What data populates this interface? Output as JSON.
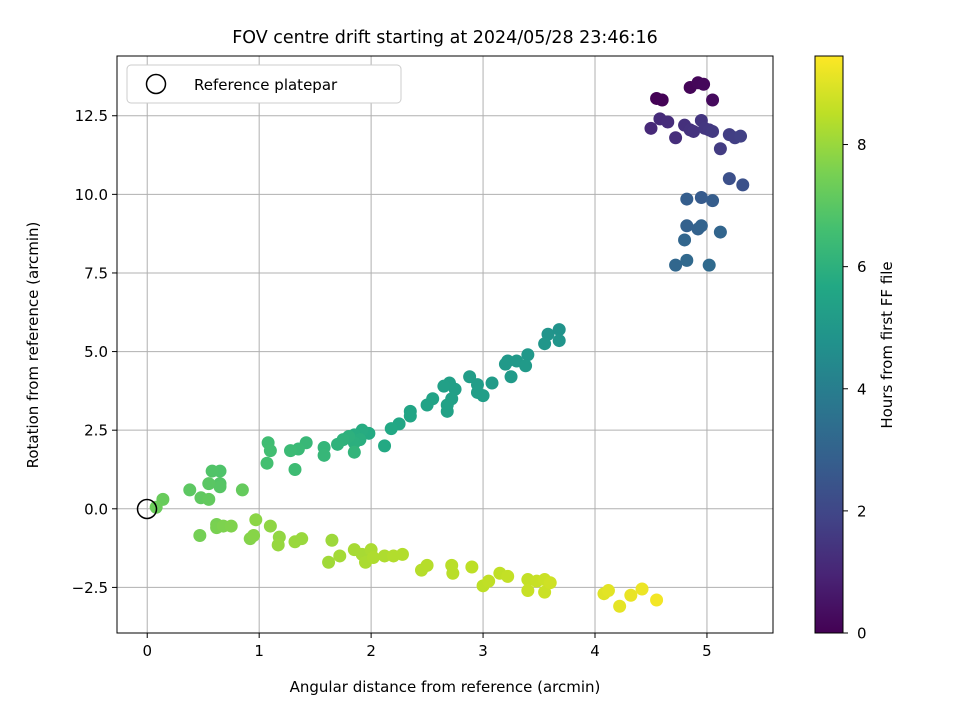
{
  "chart_data": {
    "type": "scatter",
    "title": "FOV centre drift starting at 2024/05/28 23:46:16",
    "xlabel": "Angular distance from reference (arcmin)",
    "ylabel": "Rotation from reference (arcmin)",
    "xlim": [
      -0.27,
      5.59
    ],
    "ylim": [
      -3.95,
      14.4
    ],
    "x_ticks": [
      0,
      1,
      2,
      3,
      4,
      5
    ],
    "y_ticks": [
      -2.5,
      0.0,
      2.5,
      5.0,
      7.5,
      10.0,
      12.5
    ],
    "x_tick_labels": [
      "0",
      "1",
      "2",
      "3",
      "4",
      "5"
    ],
    "y_tick_labels": [
      "−2.5",
      "0.0",
      "2.5",
      "5.0",
      "7.5",
      "10.0",
      "12.5"
    ],
    "grid": true,
    "legend": {
      "placement": "top-left",
      "entries": [
        "Reference platepar"
      ]
    },
    "reference_point": {
      "x": 0,
      "y": 0
    },
    "colorbar": {
      "label": "Hours from first FF file",
      "range": [
        0,
        9.45
      ],
      "ticks": [
        0,
        2,
        4,
        6,
        8
      ],
      "tick_labels": [
        "0",
        "2",
        "4",
        "6",
        "8"
      ],
      "colormap": "viridis"
    },
    "points": [
      {
        "x": 4.55,
        "y": 13.05,
        "h": 0.02
      },
      {
        "x": 4.6,
        "y": 13.0,
        "h": 0.05
      },
      {
        "x": 4.85,
        "y": 13.4,
        "h": 0.1
      },
      {
        "x": 4.92,
        "y": 13.55,
        "h": 0.15
      },
      {
        "x": 4.97,
        "y": 13.5,
        "h": 0.2
      },
      {
        "x": 5.05,
        "y": 13.0,
        "h": 0.25
      },
      {
        "x": 4.5,
        "y": 12.1,
        "h": 1.1
      },
      {
        "x": 4.58,
        "y": 12.4,
        "h": 1.15
      },
      {
        "x": 4.65,
        "y": 12.3,
        "h": 1.2
      },
      {
        "x": 4.72,
        "y": 11.8,
        "h": 1.25
      },
      {
        "x": 4.8,
        "y": 12.2,
        "h": 1.3
      },
      {
        "x": 4.85,
        "y": 12.05,
        "h": 1.35
      },
      {
        "x": 4.88,
        "y": 12.0,
        "h": 1.4
      },
      {
        "x": 4.95,
        "y": 12.35,
        "h": 1.45
      },
      {
        "x": 4.98,
        "y": 12.1,
        "h": 1.5
      },
      {
        "x": 5.02,
        "y": 12.05,
        "h": 1.55
      },
      {
        "x": 5.05,
        "y": 12.0,
        "h": 1.6
      },
      {
        "x": 5.12,
        "y": 11.45,
        "h": 1.65
      },
      {
        "x": 5.2,
        "y": 11.9,
        "h": 1.7
      },
      {
        "x": 5.25,
        "y": 11.8,
        "h": 1.75
      },
      {
        "x": 5.3,
        "y": 11.85,
        "h": 1.8
      },
      {
        "x": 5.2,
        "y": 10.5,
        "h": 2.3
      },
      {
        "x": 5.32,
        "y": 10.3,
        "h": 2.35
      },
      {
        "x": 4.95,
        "y": 9.9,
        "h": 2.7
      },
      {
        "x": 5.05,
        "y": 9.8,
        "h": 2.75
      },
      {
        "x": 4.82,
        "y": 9.85,
        "h": 2.8
      },
      {
        "x": 4.82,
        "y": 9.0,
        "h": 2.9
      },
      {
        "x": 4.92,
        "y": 8.9,
        "h": 2.95
      },
      {
        "x": 4.95,
        "y": 9.0,
        "h": 3.0
      },
      {
        "x": 5.12,
        "y": 8.8,
        "h": 3.05
      },
      {
        "x": 4.8,
        "y": 8.55,
        "h": 3.1
      },
      {
        "x": 4.72,
        "y": 7.75,
        "h": 3.15
      },
      {
        "x": 4.82,
        "y": 7.9,
        "h": 3.2
      },
      {
        "x": 5.02,
        "y": 7.75,
        "h": 3.25
      },
      {
        "x": 3.68,
        "y": 5.7,
        "h": 4.8
      },
      {
        "x": 3.58,
        "y": 5.55,
        "h": 4.85
      },
      {
        "x": 3.68,
        "y": 5.35,
        "h": 4.9
      },
      {
        "x": 3.55,
        "y": 5.25,
        "h": 4.95
      },
      {
        "x": 3.4,
        "y": 4.9,
        "h": 5.0
      },
      {
        "x": 3.22,
        "y": 4.7,
        "h": 5.0
      },
      {
        "x": 3.2,
        "y": 4.6,
        "h": 5.05
      },
      {
        "x": 3.3,
        "y": 4.7,
        "h": 5.05
      },
      {
        "x": 3.38,
        "y": 4.55,
        "h": 5.1
      },
      {
        "x": 3.25,
        "y": 4.2,
        "h": 5.1
      },
      {
        "x": 3.08,
        "y": 4.0,
        "h": 5.15
      },
      {
        "x": 2.88,
        "y": 4.2,
        "h": 5.2
      },
      {
        "x": 2.95,
        "y": 3.95,
        "h": 5.2
      },
      {
        "x": 2.95,
        "y": 3.7,
        "h": 5.25
      },
      {
        "x": 3.0,
        "y": 3.6,
        "h": 5.25
      },
      {
        "x": 2.75,
        "y": 3.8,
        "h": 5.3
      },
      {
        "x": 2.7,
        "y": 4.0,
        "h": 5.3
      },
      {
        "x": 2.65,
        "y": 3.9,
        "h": 5.35
      },
      {
        "x": 2.72,
        "y": 3.5,
        "h": 5.35
      },
      {
        "x": 2.68,
        "y": 3.3,
        "h": 5.4
      },
      {
        "x": 2.68,
        "y": 3.1,
        "h": 5.4
      },
      {
        "x": 2.55,
        "y": 3.5,
        "h": 5.45
      },
      {
        "x": 2.5,
        "y": 3.3,
        "h": 5.45
      },
      {
        "x": 2.35,
        "y": 3.1,
        "h": 5.5
      },
      {
        "x": 2.35,
        "y": 2.95,
        "h": 5.55
      },
      {
        "x": 2.25,
        "y": 2.7,
        "h": 5.6
      },
      {
        "x": 2.18,
        "y": 2.55,
        "h": 5.65
      },
      {
        "x": 2.12,
        "y": 2.0,
        "h": 5.7
      },
      {
        "x": 1.98,
        "y": 2.4,
        "h": 5.75
      },
      {
        "x": 1.92,
        "y": 2.5,
        "h": 5.8
      },
      {
        "x": 1.85,
        "y": 2.35,
        "h": 5.85
      },
      {
        "x": 1.9,
        "y": 2.2,
        "h": 5.9
      },
      {
        "x": 1.85,
        "y": 2.1,
        "h": 5.95
      },
      {
        "x": 1.8,
        "y": 2.3,
        "h": 6.0
      },
      {
        "x": 1.75,
        "y": 2.2,
        "h": 6.05
      },
      {
        "x": 1.7,
        "y": 2.05,
        "h": 6.1
      },
      {
        "x": 1.85,
        "y": 1.8,
        "h": 6.15
      },
      {
        "x": 1.58,
        "y": 1.95,
        "h": 6.2
      },
      {
        "x": 1.58,
        "y": 1.7,
        "h": 6.25
      },
      {
        "x": 1.42,
        "y": 2.1,
        "h": 6.3
      },
      {
        "x": 1.35,
        "y": 1.9,
        "h": 6.35
      },
      {
        "x": 1.28,
        "y": 1.85,
        "h": 6.4
      },
      {
        "x": 1.32,
        "y": 1.25,
        "h": 6.45
      },
      {
        "x": 1.08,
        "y": 2.1,
        "h": 6.5
      },
      {
        "x": 1.1,
        "y": 1.85,
        "h": 6.55
      },
      {
        "x": 1.07,
        "y": 1.45,
        "h": 6.6
      },
      {
        "x": 0.65,
        "y": 1.2,
        "h": 6.8
      },
      {
        "x": 0.58,
        "y": 1.2,
        "h": 6.85
      },
      {
        "x": 0.65,
        "y": 0.8,
        "h": 6.9
      },
      {
        "x": 0.65,
        "y": 0.7,
        "h": 6.95
      },
      {
        "x": 0.55,
        "y": 0.8,
        "h": 7.0
      },
      {
        "x": 0.38,
        "y": 0.6,
        "h": 7.05
      },
      {
        "x": 0.48,
        "y": 0.35,
        "h": 7.1
      },
      {
        "x": 0.55,
        "y": 0.3,
        "h": 7.15
      },
      {
        "x": 0.85,
        "y": 0.6,
        "h": 7.2
      },
      {
        "x": 0.14,
        "y": 0.3,
        "h": 7.25
      },
      {
        "x": 0.08,
        "y": 0.05,
        "h": 7.3
      },
      {
        "x": 0.47,
        "y": -0.85,
        "h": 7.45
      },
      {
        "x": 0.62,
        "y": -0.5,
        "h": 7.5
      },
      {
        "x": 0.62,
        "y": -0.6,
        "h": 7.55
      },
      {
        "x": 0.68,
        "y": -0.55,
        "h": 7.6
      },
      {
        "x": 0.75,
        "y": -0.55,
        "h": 7.65
      },
      {
        "x": 0.92,
        "y": -0.95,
        "h": 7.7
      },
      {
        "x": 0.95,
        "y": -0.85,
        "h": 7.75
      },
      {
        "x": 0.97,
        "y": -0.35,
        "h": 7.8
      },
      {
        "x": 1.1,
        "y": -0.55,
        "h": 7.85
      },
      {
        "x": 1.18,
        "y": -0.9,
        "h": 7.9
      },
      {
        "x": 1.17,
        "y": -1.15,
        "h": 7.95
      },
      {
        "x": 1.32,
        "y": -1.05,
        "h": 8.0
      },
      {
        "x": 1.38,
        "y": -0.95,
        "h": 8.0
      },
      {
        "x": 1.65,
        "y": -1.0,
        "h": 8.05
      },
      {
        "x": 1.62,
        "y": -1.7,
        "h": 8.1
      },
      {
        "x": 1.72,
        "y": -1.5,
        "h": 8.15
      },
      {
        "x": 1.85,
        "y": -1.3,
        "h": 8.2
      },
      {
        "x": 1.92,
        "y": -1.45,
        "h": 8.2
      },
      {
        "x": 1.95,
        "y": -1.7,
        "h": 8.25
      },
      {
        "x": 2.0,
        "y": -1.3,
        "h": 8.25
      },
      {
        "x": 2.02,
        "y": -1.55,
        "h": 8.3
      },
      {
        "x": 2.12,
        "y": -1.5,
        "h": 8.3
      },
      {
        "x": 2.2,
        "y": -1.5,
        "h": 8.35
      },
      {
        "x": 2.28,
        "y": -1.45,
        "h": 8.35
      },
      {
        "x": 2.45,
        "y": -1.95,
        "h": 8.4
      },
      {
        "x": 2.5,
        "y": -1.8,
        "h": 8.4
      },
      {
        "x": 2.72,
        "y": -1.8,
        "h": 8.45
      },
      {
        "x": 2.73,
        "y": -2.05,
        "h": 8.45
      },
      {
        "x": 2.9,
        "y": -1.85,
        "h": 8.5
      },
      {
        "x": 3.0,
        "y": -2.45,
        "h": 8.5
      },
      {
        "x": 3.05,
        "y": -2.3,
        "h": 8.55
      },
      {
        "x": 3.15,
        "y": -2.05,
        "h": 8.55
      },
      {
        "x": 3.22,
        "y": -2.15,
        "h": 8.6
      },
      {
        "x": 3.4,
        "y": -2.25,
        "h": 8.6
      },
      {
        "x": 3.4,
        "y": -2.6,
        "h": 8.65
      },
      {
        "x": 3.48,
        "y": -2.3,
        "h": 8.65
      },
      {
        "x": 3.55,
        "y": -2.25,
        "h": 8.7
      },
      {
        "x": 3.55,
        "y": -2.65,
        "h": 8.7
      },
      {
        "x": 3.6,
        "y": -2.35,
        "h": 8.75
      },
      {
        "x": 4.08,
        "y": -2.7,
        "h": 9.0
      },
      {
        "x": 4.12,
        "y": -2.6,
        "h": 9.05
      },
      {
        "x": 4.22,
        "y": -3.1,
        "h": 9.1
      },
      {
        "x": 4.32,
        "y": -2.75,
        "h": 9.15
      },
      {
        "x": 4.42,
        "y": -2.55,
        "h": 9.2
      },
      {
        "x": 4.55,
        "y": -2.9,
        "h": 9.3
      }
    ]
  }
}
